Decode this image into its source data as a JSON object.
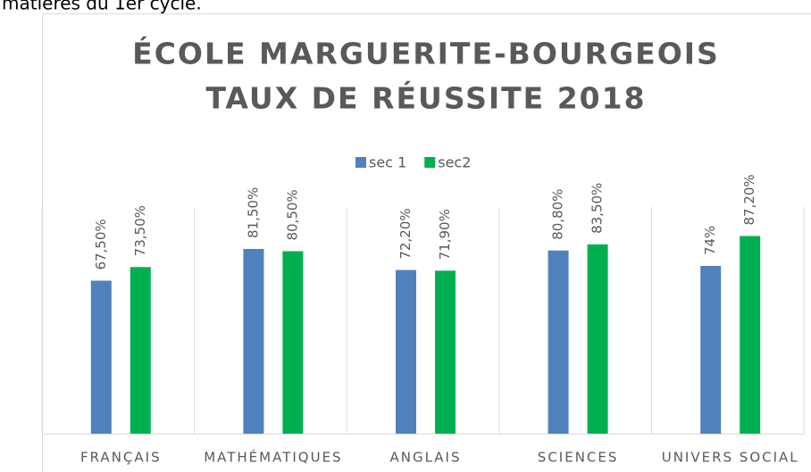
{
  "page_text": "matières du 1er cycle.",
  "chart_data": {
    "type": "bar",
    "title": [
      "ÉCOLE MARGUERITE-BOURGEOIS",
      "TAUX DE RÉUSSITE 2018"
    ],
    "categories": [
      "FRANÇAIS",
      "MATHÉMATIQUES",
      "ANGLAIS",
      "SCIENCES",
      "UNIVERS SOCIAL"
    ],
    "series": [
      {
        "name": "sec 1",
        "color": "#4f81bd",
        "values": [
          67.5,
          81.5,
          72.2,
          80.8,
          74
        ],
        "value_labels": [
          "67,50%",
          "81,50%",
          "72,20%",
          "80,80%",
          "74%"
        ]
      },
      {
        "name": "sec2",
        "color": "#00b050",
        "values": [
          73.5,
          80.5,
          71.9,
          83.5,
          87.2
        ],
        "value_labels": [
          "73,50%",
          "80,50%",
          "71,90%",
          "83,50%",
          "87,20%"
        ]
      }
    ],
    "ylim": [
      0,
      100
    ],
    "legend": "top"
  }
}
